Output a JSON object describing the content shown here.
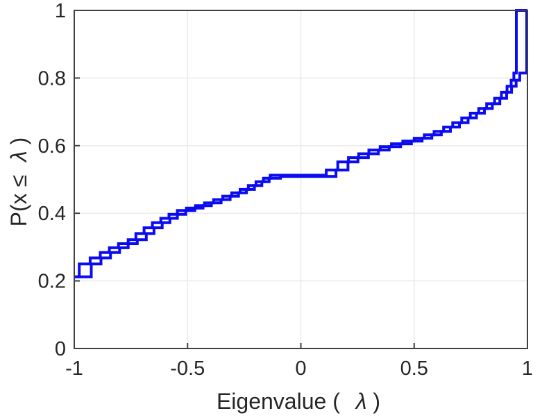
{
  "chart_data": {
    "type": "step",
    "title": "",
    "xlabel": "Eigenvalue ( λ)",
    "xlabel_prefix": "Eigenvalue (",
    "xlabel_lambda": "λ",
    "xlabel_suffix": ")",
    "ylabel": "P(x ≤ λ)",
    "ylabel_prefix": "P(x ≤",
    "ylabel_lambda": "λ",
    "ylabel_suffix": ")",
    "xlim": [
      -1,
      1
    ],
    "ylim": [
      0,
      1
    ],
    "xticks": [
      -1,
      -0.5,
      0,
      0.5,
      1
    ],
    "xtick_labels": [
      "-1",
      "-0.5",
      "0",
      "0.5",
      "1"
    ],
    "yticks": [
      0,
      0.2,
      0.4,
      0.6,
      0.8,
      1
    ],
    "ytick_labels": [
      "0",
      "0.2",
      "0.4",
      "0.6",
      "0.8",
      "1"
    ],
    "grid": true,
    "legend": "none",
    "line_color": "#0b0bf0",
    "grid_color": "#ebebeb",
    "axis_color": "#404040",
    "series": [
      {
        "name": "ecdf-curve-1",
        "start_x": -1.0,
        "start_value": 0.212,
        "points": [
          [
            -0.978,
            0.25
          ],
          [
            -0.93,
            0.268
          ],
          [
            -0.885,
            0.284
          ],
          [
            -0.845,
            0.298
          ],
          [
            -0.805,
            0.31
          ],
          [
            -0.762,
            0.322
          ],
          [
            -0.728,
            0.34
          ],
          [
            -0.692,
            0.357
          ],
          [
            -0.655,
            0.372
          ],
          [
            -0.618,
            0.385
          ],
          [
            -0.582,
            0.397
          ],
          [
            -0.545,
            0.408
          ],
          [
            -0.505,
            0.4155
          ],
          [
            -0.465,
            0.4225
          ],
          [
            -0.425,
            0.4305
          ],
          [
            -0.385,
            0.4405
          ],
          [
            -0.345,
            0.4505
          ],
          [
            -0.305,
            0.4605
          ],
          [
            -0.268,
            0.4705
          ],
          [
            -0.232,
            0.482
          ],
          [
            -0.198,
            0.4935
          ],
          [
            -0.165,
            0.5035
          ],
          [
            -0.135,
            0.5125
          ],
          [
            0.112,
            0.528
          ],
          [
            0.163,
            0.552
          ],
          [
            0.21,
            0.5645
          ],
          [
            0.255,
            0.576
          ],
          [
            0.3,
            0.587
          ],
          [
            0.35,
            0.597
          ],
          [
            0.4,
            0.6055
          ],
          [
            0.45,
            0.6135
          ],
          [
            0.5,
            0.622
          ],
          [
            0.545,
            0.632
          ],
          [
            0.588,
            0.642
          ],
          [
            0.63,
            0.655
          ],
          [
            0.67,
            0.668
          ],
          [
            0.71,
            0.682
          ],
          [
            0.748,
            0.696
          ],
          [
            0.785,
            0.71
          ],
          [
            0.82,
            0.724
          ],
          [
            0.855,
            0.74
          ],
          [
            0.885,
            0.758
          ],
          [
            0.91,
            0.7755
          ],
          [
            0.928,
            0.7935
          ],
          [
            0.94,
            0.8145
          ],
          [
            0.951,
            1.0
          ]
        ],
        "end_x": 1.0
      },
      {
        "name": "ecdf-curve-2",
        "start_x": -1.0,
        "start_value": 0.212,
        "points": [
          [
            -0.925,
            0.25
          ],
          [
            -0.882,
            0.268
          ],
          [
            -0.84,
            0.284
          ],
          [
            -0.8,
            0.298
          ],
          [
            -0.762,
            0.31
          ],
          [
            -0.722,
            0.322
          ],
          [
            -0.682,
            0.34
          ],
          [
            -0.648,
            0.357
          ],
          [
            -0.612,
            0.372
          ],
          [
            -0.578,
            0.385
          ],
          [
            -0.545,
            0.397
          ],
          [
            -0.508,
            0.408
          ],
          [
            -0.468,
            0.4155
          ],
          [
            -0.432,
            0.4225
          ],
          [
            -0.395,
            0.4305
          ],
          [
            -0.352,
            0.4405
          ],
          [
            -0.312,
            0.4505
          ],
          [
            -0.275,
            0.4605
          ],
          [
            -0.24,
            0.4705
          ],
          [
            -0.205,
            0.482
          ],
          [
            -0.172,
            0.4935
          ],
          [
            -0.14,
            0.5035
          ],
          [
            -0.09,
            0.509
          ],
          [
            0.155,
            0.528
          ],
          [
            0.208,
            0.552
          ],
          [
            0.252,
            0.5645
          ],
          [
            0.298,
            0.576
          ],
          [
            0.342,
            0.587
          ],
          [
            0.39,
            0.597
          ],
          [
            0.44,
            0.6055
          ],
          [
            0.488,
            0.6135
          ],
          [
            0.535,
            0.622
          ],
          [
            0.578,
            0.632
          ],
          [
            0.62,
            0.642
          ],
          [
            0.66,
            0.655
          ],
          [
            0.7,
            0.668
          ],
          [
            0.738,
            0.682
          ],
          [
            0.775,
            0.696
          ],
          [
            0.81,
            0.71
          ],
          [
            0.845,
            0.724
          ],
          [
            0.878,
            0.74
          ],
          [
            0.908,
            0.758
          ],
          [
            0.93,
            0.7755
          ],
          [
            0.95,
            0.7935
          ],
          [
            0.966,
            0.8145
          ],
          [
            0.997,
            1.0
          ]
        ],
        "end_x": 1.0
      }
    ]
  }
}
